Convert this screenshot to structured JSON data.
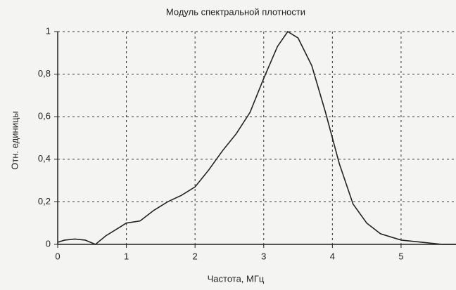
{
  "chart_data": {
    "type": "line",
    "title": "Модуль спектральной плотности",
    "x_label": "Частота, МГц",
    "y_label": "Отн. единицы",
    "x": [
      0,
      0.1,
      0.25,
      0.4,
      0.55,
      0.7,
      0.9,
      1.0,
      1.2,
      1.4,
      1.6,
      1.8,
      2.0,
      2.2,
      2.4,
      2.6,
      2.8,
      3.0,
      3.2,
      3.35,
      3.5,
      3.7,
      3.9,
      4.1,
      4.3,
      4.5,
      4.7,
      5.0,
      5.3,
      5.6,
      5.8
    ],
    "series": [
      {
        "color": "#222222",
        "values": [
          0.01,
          0.02,
          0.025,
          0.02,
          0.0,
          0.04,
          0.08,
          0.1,
          0.11,
          0.16,
          0.2,
          0.23,
          0.27,
          0.35,
          0.44,
          0.52,
          0.62,
          0.78,
          0.93,
          1.0,
          0.97,
          0.84,
          0.62,
          0.38,
          0.19,
          0.1,
          0.05,
          0.02,
          0.01,
          0.0,
          0.0
        ]
      }
    ],
    "xlim": [
      0,
      5.8
    ],
    "xticks": [
      0,
      1,
      2,
      3,
      4,
      5
    ],
    "ylim": [
      0,
      1
    ],
    "yticks": [
      0,
      {
        "value": 0.2,
        "label": "0,2"
      },
      {
        "value": 0.4,
        "label": "0,4"
      },
      {
        "value": 0.6,
        "label": "0,6"
      },
      {
        "value": 0.8,
        "label": "0,8"
      },
      1
    ],
    "grid": true
  }
}
